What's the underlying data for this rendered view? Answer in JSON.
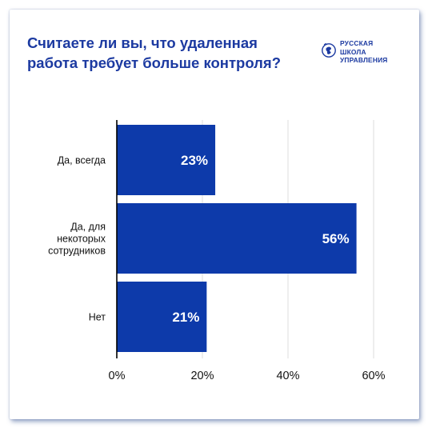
{
  "title": "Считаете ли вы, что удаленная работа требует больше контроля?",
  "logo": {
    "lines": [
      "РУССКАЯ",
      "ШКОЛА",
      "УПРАВЛЕНИЯ"
    ],
    "icon": "globe-emblem-icon"
  },
  "colors": {
    "bar": "#0d3aaa",
    "title": "#1c3aa1",
    "axis": "#000000",
    "grid": "#dcdcdc",
    "card_shadow": "#3c5a96"
  },
  "chart_data": {
    "type": "bar",
    "orientation": "horizontal",
    "categories": [
      [
        "Да, всегда"
      ],
      [
        "Да, для",
        "некоторых",
        "сотрудников"
      ],
      [
        "Нет"
      ]
    ],
    "values": [
      23,
      56,
      21
    ],
    "value_labels": [
      "23%",
      "56%",
      "21%"
    ],
    "x_ticks": [
      "0%",
      "20%",
      "40%",
      "60%"
    ],
    "xlim": [
      0,
      60
    ],
    "grid": true,
    "title": "Считаете ли вы, что удаленная работа требует больше контроля?"
  }
}
